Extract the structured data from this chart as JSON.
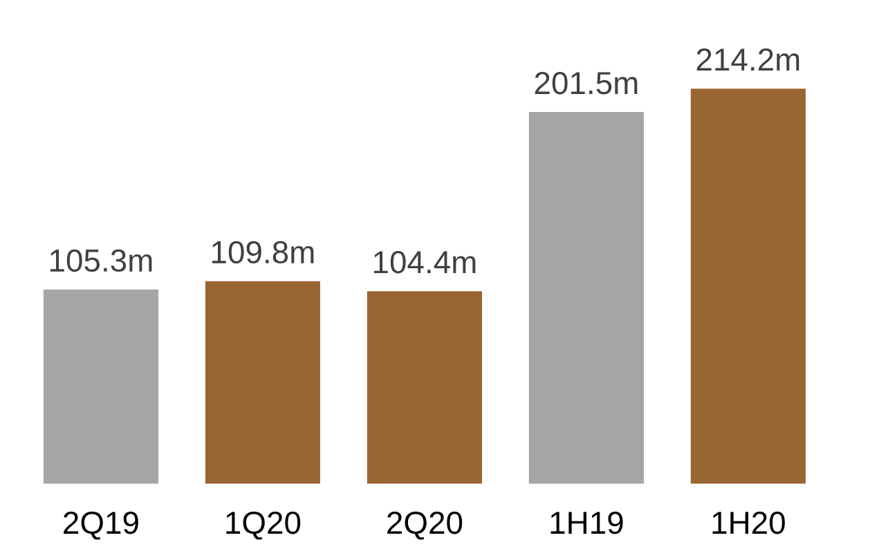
{
  "chart_data": {
    "type": "bar",
    "categories": [
      "2Q19",
      "1Q20",
      "2Q20",
      "1H19",
      "1H20"
    ],
    "values": [
      105.3,
      109.8,
      104.4,
      201.5,
      214.2
    ],
    "colors": [
      "#a6a6a6",
      "#996633",
      "#996633",
      "#a6a6a6",
      "#996633"
    ],
    "value_labels": [
      "105.3m",
      "109.8m",
      "104.4m",
      "201.5m",
      "214.2m"
    ],
    "grid": false,
    "legend": false
  }
}
